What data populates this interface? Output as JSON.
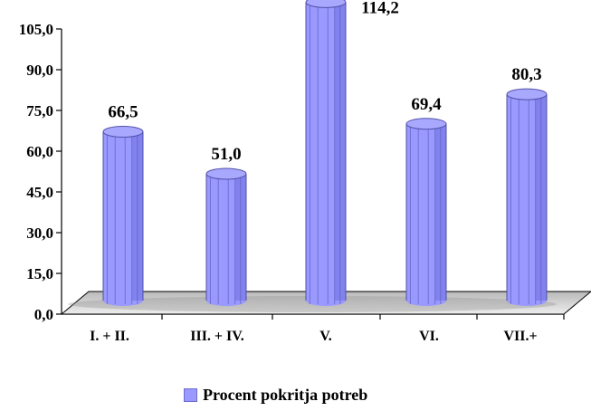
{
  "chart_data": {
    "type": "bar",
    "categories": [
      "I. + II.",
      "III. + IV.",
      "V.",
      "VI.",
      "VII.+"
    ],
    "series": [
      {
        "name": "Procent pokritja potreb",
        "values": [
          66.5,
          51.0,
          114.2,
          69.4,
          80.3
        ],
        "value_labels": [
          "66,5",
          "51,0",
          "114,2",
          "69,4",
          "80,3"
        ]
      }
    ],
    "y_ticks": [
      "0,0",
      "15,0",
      "30,0",
      "45,0",
      "60,0",
      "75,0",
      "90,0",
      "105,0"
    ],
    "ylim": [
      0,
      105
    ],
    "grid": false,
    "legend": "bottom",
    "colors": {
      "bar": "#9999ff",
      "bar_shade": "#6f6fe0",
      "bar_top": "#a8a8ff",
      "floor": "#c8c8c8"
    }
  }
}
